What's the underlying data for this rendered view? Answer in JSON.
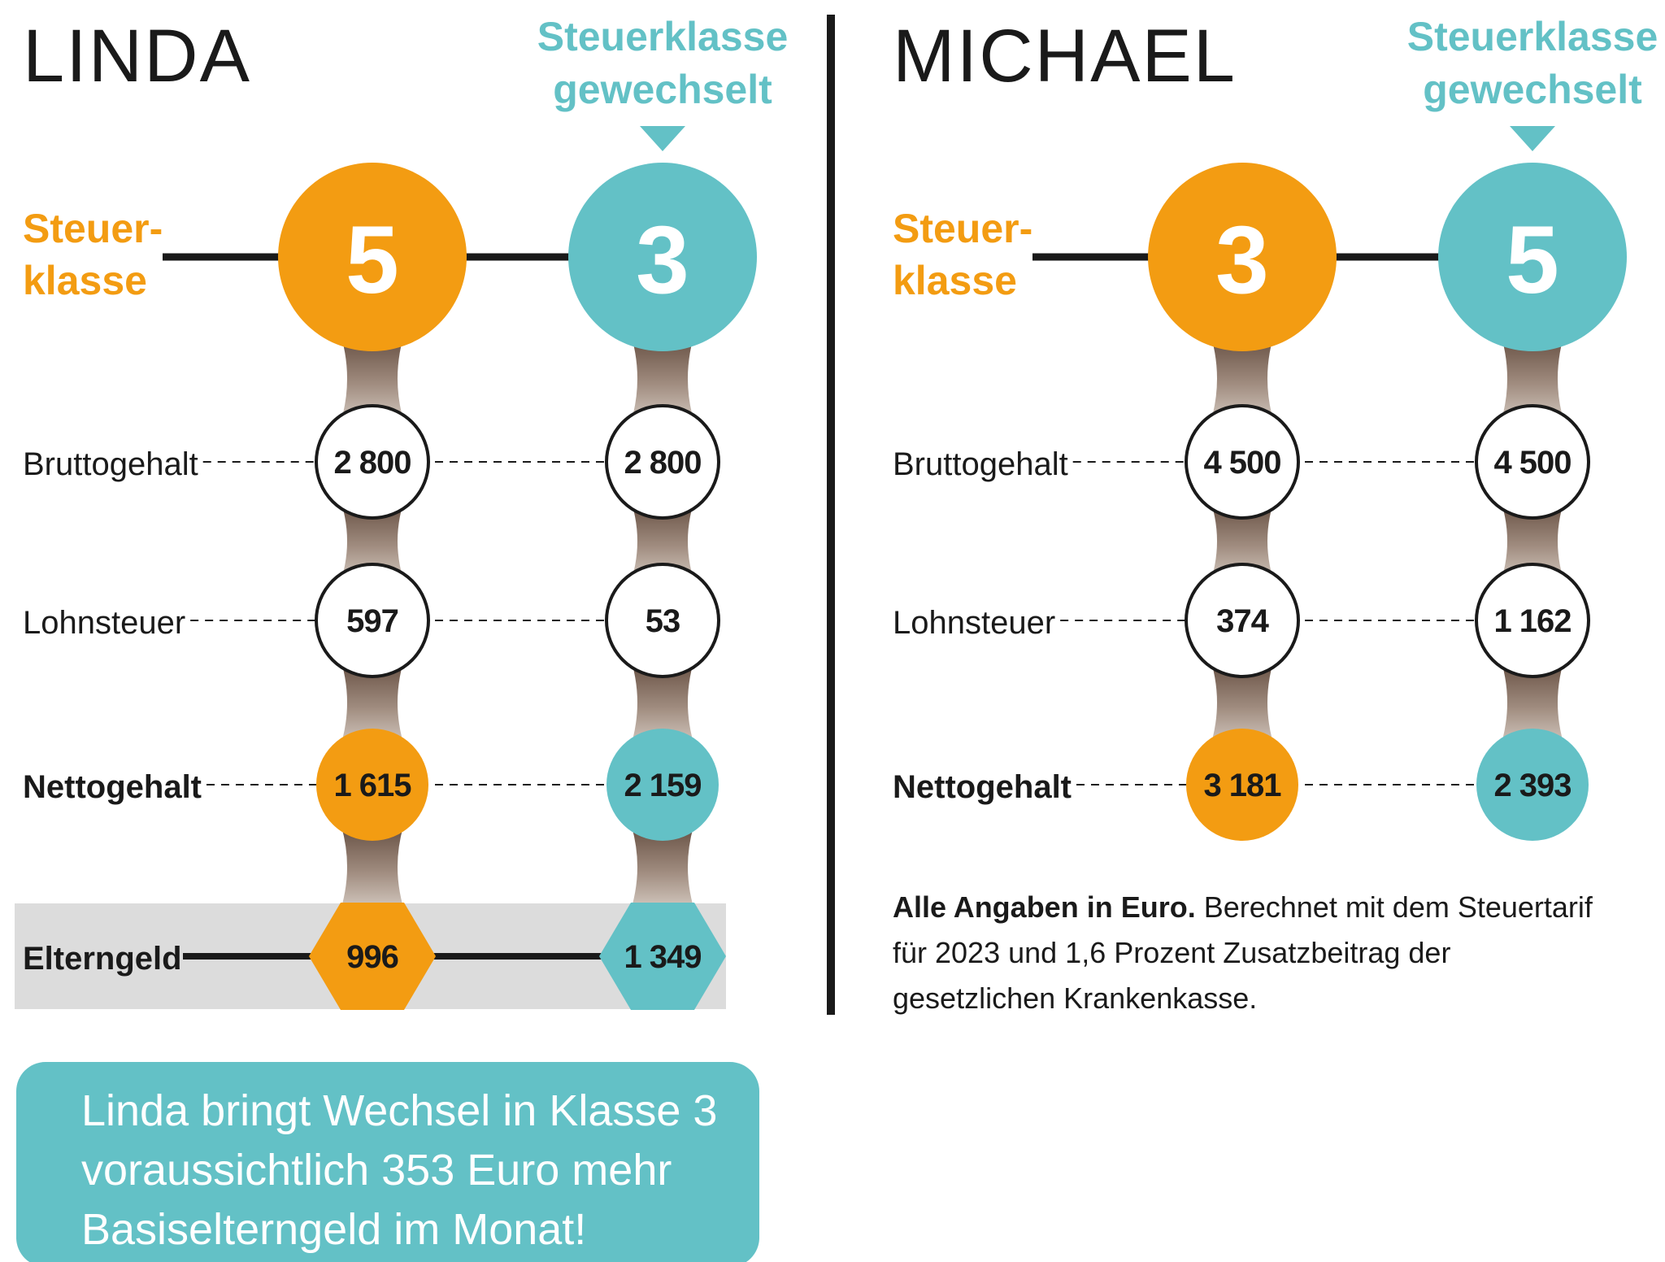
{
  "colors": {
    "orange": "#f39c12",
    "teal": "#63c1c6",
    "dark": "#1a1a1a",
    "gray_band": "#dcdcdc",
    "connector_dark": "#6b5446",
    "connector_light": "#c9bdb3"
  },
  "panels": [
    {
      "name": "LINDA",
      "switched_label_line1": "Steuerklasse",
      "switched_label_line2": "gewechselt",
      "steuerklasse_label_line1": "Steuer-",
      "steuerklasse_label_line2": "klasse",
      "classes": [
        "5",
        "3"
      ],
      "rows": [
        {
          "label": "Bruttogehalt",
          "bold": false,
          "values": [
            "2 800",
            "2 800"
          ]
        },
        {
          "label": "Lohnsteuer",
          "bold": false,
          "values": [
            "597",
            "53"
          ]
        },
        {
          "label": "Nettogehalt",
          "bold": true,
          "values": [
            "1 615",
            "2 159"
          ]
        }
      ],
      "elterngeld": {
        "label": "Elterngeld",
        "values": [
          "996",
          "1 349"
        ]
      }
    },
    {
      "name": "MICHAEL",
      "switched_label_line1": "Steuerklasse",
      "switched_label_line2": "gewechselt",
      "steuerklasse_label_line1": "Steuer-",
      "steuerklasse_label_line2": "klasse",
      "classes": [
        "3",
        "5"
      ],
      "rows": [
        {
          "label": "Bruttogehalt",
          "bold": false,
          "values": [
            "4 500",
            "4 500"
          ]
        },
        {
          "label": "Lohnsteuer",
          "bold": false,
          "values": [
            "374",
            "1 162"
          ]
        },
        {
          "label": "Nettogehalt",
          "bold": true,
          "values": [
            "3 181",
            "2 393"
          ]
        }
      ],
      "elterngeld": null
    }
  ],
  "footnote": {
    "bold": "Alle Angaben in Euro.",
    "lines": [
      " Berechnet mit dem Steuertarif",
      "für 2023 und 1,6 Prozent Zusatzbeitrag der",
      "gesetzlichen Krankenkasse."
    ]
  },
  "callout": {
    "lines": [
      "Linda bringt Wechsel in Klasse 3",
      "voraussichtlich 353 Euro mehr",
      "Basiselterngeld im Monat!"
    ]
  }
}
